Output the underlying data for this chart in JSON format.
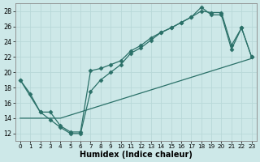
{
  "xlabel": "Humidex (Indice chaleur)",
  "xlim": [
    -0.5,
    23.5
  ],
  "ylim": [
    11,
    29
  ],
  "xticks": [
    0,
    1,
    2,
    3,
    4,
    5,
    6,
    7,
    8,
    9,
    10,
    11,
    12,
    13,
    14,
    15,
    16,
    17,
    18,
    19,
    20,
    21,
    22,
    23
  ],
  "yticks": [
    12,
    14,
    16,
    18,
    20,
    22,
    24,
    26,
    28
  ],
  "bg_color": "#cde8e8",
  "line_color": "#2a7068",
  "grid_color": "#b8d8d8",
  "line1_x": [
    0,
    1,
    2,
    3,
    4,
    5,
    6,
    7,
    8,
    9,
    10,
    11,
    12,
    13,
    14,
    15,
    16,
    17,
    18,
    19,
    20,
    21,
    22,
    23
  ],
  "line1_y": [
    19.0,
    17.2,
    14.8,
    13.8,
    12.8,
    12.0,
    12.0,
    17.5,
    19.0,
    20.0,
    21.0,
    22.5,
    23.2,
    24.2,
    25.2,
    25.8,
    26.5,
    27.2,
    28.5,
    27.5,
    27.5,
    23.0,
    25.8,
    22.0
  ],
  "line2_x": [
    0,
    2,
    3,
    4,
    5,
    6,
    7,
    8,
    9,
    10,
    11,
    12,
    13,
    14,
    15,
    16,
    17,
    18,
    19,
    20,
    21,
    22,
    23
  ],
  "line2_y": [
    19.0,
    14.8,
    14.8,
    13.0,
    12.2,
    12.2,
    20.2,
    20.5,
    21.0,
    21.5,
    22.8,
    23.5,
    24.5,
    25.2,
    25.8,
    26.5,
    27.2,
    28.0,
    27.8,
    27.8,
    23.5,
    25.8,
    22.0
  ],
  "line3_x": [
    0,
    4,
    23
  ],
  "line3_y": [
    14.0,
    14.0,
    21.8
  ],
  "marker": "D",
  "markersize": 2.5,
  "linewidth": 0.9
}
